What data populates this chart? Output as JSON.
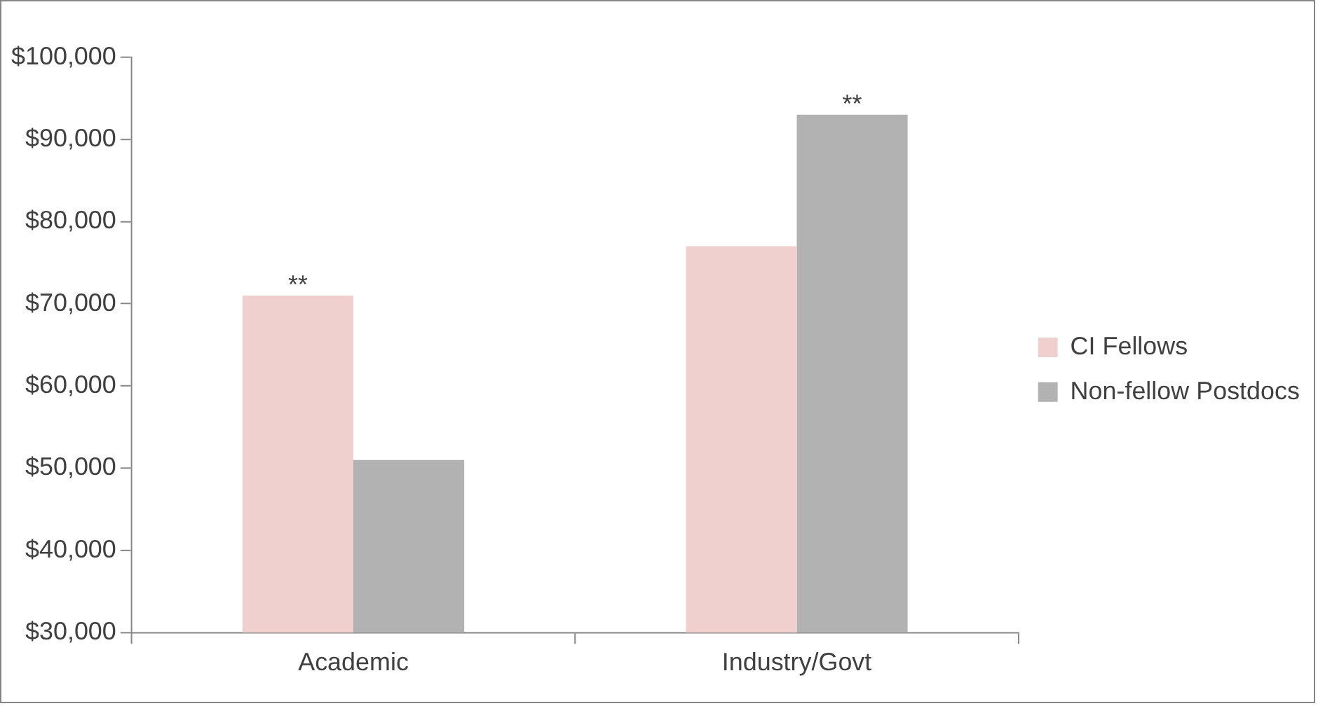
{
  "chart_data": {
    "type": "bar",
    "categories": [
      "Academic",
      "Industry/Govt"
    ],
    "series": [
      {
        "name": "CI Fellows",
        "color": "#f0d0ce",
        "values": [
          71000,
          77000
        ]
      },
      {
        "name": "Non-fellow Postdocs",
        "color": "#b2b2b2",
        "values": [
          51000,
          93000
        ]
      }
    ],
    "ylim": [
      30000,
      100000
    ],
    "yticks": [
      {
        "value": 30000,
        "label": "$30,000"
      },
      {
        "value": 40000,
        "label": "$40,000"
      },
      {
        "value": 50000,
        "label": "$50,000"
      },
      {
        "value": 60000,
        "label": "$60,000"
      },
      {
        "value": 70000,
        "label": "$70,000"
      },
      {
        "value": 80000,
        "label": "$80,000"
      },
      {
        "value": 90000,
        "label": "$90,000"
      },
      {
        "value": 100000,
        "label": "$100,000"
      }
    ],
    "grid": false,
    "legend": "right",
    "annotations": [
      {
        "text": "**",
        "x": "Academic",
        "y": 71000
      },
      {
        "text": "**",
        "x": "Industry/Govt",
        "y": 93000
      }
    ]
  }
}
